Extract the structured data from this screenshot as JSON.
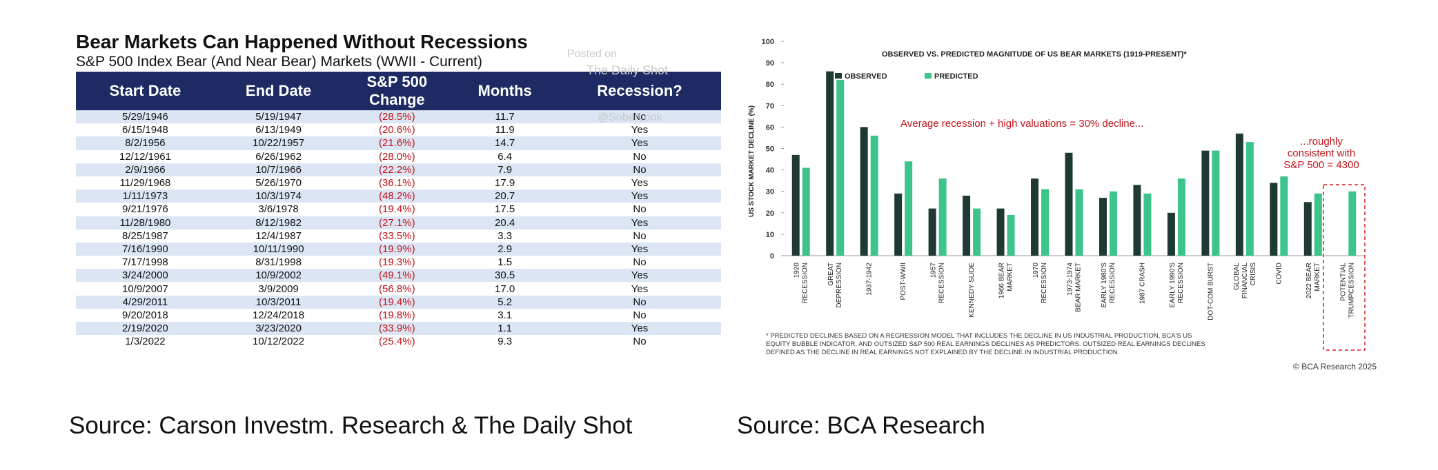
{
  "table": {
    "title": "Bear Markets Can Happened Without Recessions",
    "subtitle": "S&P 500 Index Bear (And Near Bear) Markets (WWII - Current)",
    "watermark": [
      "Posted on",
      "The Daily Shot",
      "@SoberLook"
    ],
    "columns": [
      "Start Date",
      "End Date",
      "S&P 500 Change",
      "Months",
      "Recession?"
    ],
    "rows": [
      [
        "5/29/1946",
        "5/19/1947",
        "(28.5%)",
        "11.7",
        "No"
      ],
      [
        "6/15/1948",
        "6/13/1949",
        "(20.6%)",
        "11.9",
        "Yes"
      ],
      [
        "8/2/1956",
        "10/22/1957",
        "(21.6%)",
        "14.7",
        "Yes"
      ],
      [
        "12/12/1961",
        "6/26/1962",
        "(28.0%)",
        "6.4",
        "No"
      ],
      [
        "2/9/1966",
        "10/7/1966",
        "(22.2%)",
        "7.9",
        "No"
      ],
      [
        "11/29/1968",
        "5/26/1970",
        "(36.1%)",
        "17.9",
        "Yes"
      ],
      [
        "1/11/1973",
        "10/3/1974",
        "(48.2%)",
        "20.7",
        "Yes"
      ],
      [
        "9/21/1976",
        "3/6/1978",
        "(19.4%)",
        "17.5",
        "No"
      ],
      [
        "11/28/1980",
        "8/12/1982",
        "(27.1%)",
        "20.4",
        "Yes"
      ],
      [
        "8/25/1987",
        "12/4/1987",
        "(33.5%)",
        "3.3",
        "No"
      ],
      [
        "7/16/1990",
        "10/11/1990",
        "(19.9%)",
        "2.9",
        "Yes"
      ],
      [
        "7/17/1998",
        "8/31/1998",
        "(19.3%)",
        "1.5",
        "No"
      ],
      [
        "3/24/2000",
        "10/9/2002",
        "(49.1%)",
        "30.5",
        "Yes"
      ],
      [
        "10/9/2007",
        "3/9/2009",
        "(56.8%)",
        "17.0",
        "Yes"
      ],
      [
        "4/29/2011",
        "10/3/2011",
        "(19.4%)",
        "5.2",
        "No"
      ],
      [
        "9/20/2018",
        "12/24/2018",
        "(19.8%)",
        "3.1",
        "No"
      ],
      [
        "2/19/2020",
        "3/23/2020",
        "(33.9%)",
        "1.1",
        "Yes"
      ],
      [
        "1/3/2022",
        "10/12/2022",
        "(25.4%)",
        "9.3",
        "No"
      ]
    ],
    "source": "Source: Carson Investm. Research & The Daily Shot"
  },
  "chart_data": {
    "type": "bar",
    "title": "OBSERVED VS. PREDICTED MAGNITUDE OF US BEAR MARKETS (1919-PRESENT)*",
    "ylabel": "US STOCK MARKET DECLINE (%)",
    "categories": [
      "1920 RECESSION",
      "GREAT DEPRESSION",
      "1937-1942",
      "POST-WWII",
      "1957 RECESSION",
      "KENNEDY SLIDE",
      "1966 BEAR MARKET",
      "1970 RECESSION",
      "1973-1974 BEAR MARKET",
      "EARLY 1980'S RECESSION",
      "1987 CRASH",
      "EARLY 1990'S RECESSION",
      "DOT-COM BURST",
      "GLOBAL FINANCIAL CRISIS",
      "COVID",
      "2022 BEAR MARKET",
      "POTENTIAL TRUMPCESSION"
    ],
    "series": [
      {
        "name": "OBSERVED",
        "color": "#1f3a34",
        "values": [
          47,
          86,
          60,
          29,
          22,
          28,
          22,
          36,
          48,
          27,
          33,
          20,
          49,
          57,
          34,
          25,
          null
        ]
      },
      {
        "name": "PREDICTED",
        "color": "#3cc48b",
        "values": [
          41,
          82,
          56,
          44,
          36,
          22,
          19,
          31,
          31,
          30,
          29,
          36,
          49,
          53,
          37,
          29,
          30
        ]
      }
    ],
    "ylim": [
      0,
      100
    ],
    "yticks": [
      0,
      10,
      20,
      30,
      40,
      50,
      60,
      70,
      80,
      90,
      100
    ],
    "annotations": [
      "Average recession + high valuations = 30% decline...",
      "...roughly consistent with S&P 500 = 4300"
    ],
    "footnote": "* PREDICTED DECLINES BASED ON A REGRESSION MODEL THAT INCLUDES THE DECLINE IN US INDUSTRIAL PRODUCTION, BCA'S US EQUITY BUBBLE INDICATOR, AND OUTSIZED S&P 500 REAL EARNINGS DECLINES AS PREDICTORS. OUTSIZED REAL EARNINGS DECLINES DEFINED AS THE DECLINE IN REAL EARNINGS NOT EXPLAINED BY THE DECLINE IN INDUSTRIAL PRODUCTION.",
    "credit": "© BCA Research 2025",
    "source": "Source: BCA Research"
  }
}
